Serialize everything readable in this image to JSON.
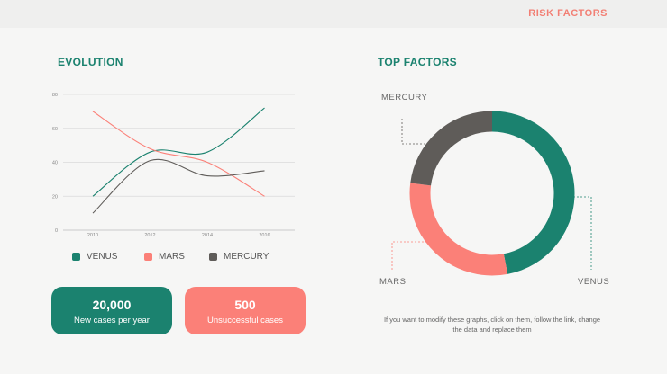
{
  "header": {
    "title": "RISK FACTORS"
  },
  "evolution": {
    "title": "EVOLUTION",
    "legend": [
      {
        "label": "VENUS",
        "color": "#1b826f"
      },
      {
        "label": "MARS",
        "color": "#fb8078"
      },
      {
        "label": "MERCURY",
        "color": "#5f5c59"
      }
    ]
  },
  "top_factors": {
    "title": "TOP FACTORS",
    "labels": {
      "mercury": "MERCURY",
      "mars": "MARS",
      "venus": "VENUS"
    }
  },
  "cards": {
    "cases": {
      "value": "20,000",
      "label": "New cases per year"
    },
    "unsuccessful": {
      "value": "500",
      "label": "Unsuccessful cases"
    }
  },
  "note": "If you want to modify these graphs, click on them, follow the link, change the data and replace them",
  "chart_data": [
    {
      "type": "line",
      "x": [
        2010,
        2012,
        2014,
        2016
      ],
      "xticks": [
        "2010",
        "2012",
        "2014",
        "2016"
      ],
      "ylim": [
        0,
        80
      ],
      "yticks": [
        0,
        20,
        40,
        60,
        80
      ],
      "grid": true,
      "series": [
        {
          "name": "VENUS",
          "color": "#1b826f",
          "values": [
            20,
            46,
            46,
            72
          ]
        },
        {
          "name": "MARS",
          "color": "#fb8078",
          "values": [
            70,
            48,
            40,
            20
          ]
        },
        {
          "name": "MERCURY",
          "color": "#5f5c59",
          "values": [
            10,
            41,
            32,
            35
          ]
        }
      ]
    },
    {
      "type": "pie",
      "categories": [
        "VENUS",
        "MARS",
        "MERCURY"
      ],
      "values": [
        47,
        30,
        23
      ],
      "colors": [
        "#1b826f",
        "#fb8078",
        "#5f5c59"
      ]
    }
  ]
}
